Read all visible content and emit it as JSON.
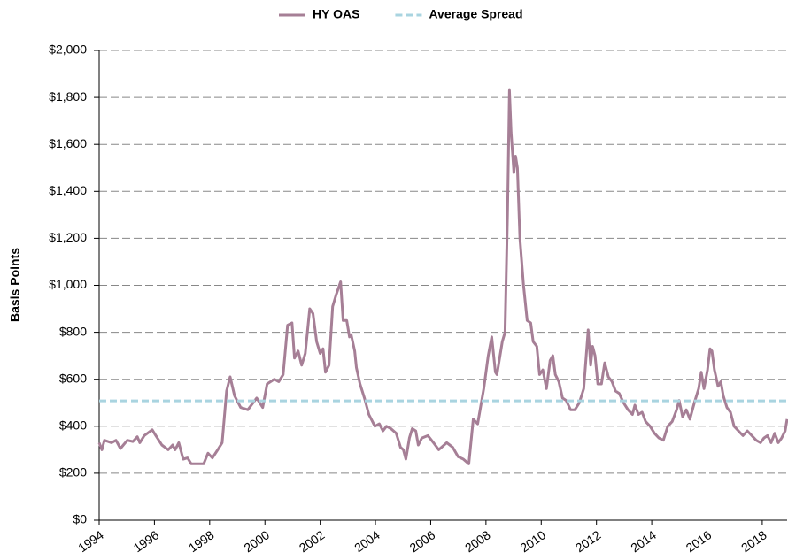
{
  "chart_data": {
    "type": "line",
    "y_label": "Basis Points",
    "x": [
      1994.0,
      1994.1,
      1994.19,
      1994.45,
      1994.61,
      1994.77,
      1995.02,
      1995.22,
      1995.38,
      1995.47,
      1995.63,
      1995.92,
      1996.05,
      1996.27,
      1996.5,
      1996.66,
      1996.75,
      1996.88,
      1997.04,
      1997.2,
      1997.33,
      1997.78,
      1997.94,
      1998.1,
      1998.29,
      1998.45,
      1998.61,
      1998.74,
      1998.9,
      1999.12,
      1999.38,
      1999.7,
      1999.92,
      2000.08,
      2000.34,
      2000.5,
      2000.66,
      2000.82,
      2000.98,
      2001.07,
      2001.2,
      2001.33,
      2001.46,
      2001.62,
      2001.74,
      2001.87,
      2002.0,
      2002.1,
      2002.19,
      2002.32,
      2002.45,
      2002.58,
      2002.74,
      2002.83,
      2002.96,
      2003.06,
      2003.12,
      2003.25,
      2003.31,
      2003.44,
      2003.6,
      2003.76,
      2003.98,
      2004.14,
      2004.27,
      2004.4,
      2004.56,
      2004.75,
      2004.91,
      2005.01,
      2005.1,
      2005.23,
      2005.33,
      2005.46,
      2005.55,
      2005.68,
      2005.9,
      2006.1,
      2006.29,
      2006.58,
      2006.8,
      2006.99,
      2007.18,
      2007.38,
      2007.54,
      2007.7,
      2007.92,
      2008.08,
      2008.21,
      2008.34,
      2008.4,
      2008.59,
      2008.69,
      2008.78,
      2008.85,
      2008.91,
      2009.01,
      2009.07,
      2009.14,
      2009.23,
      2009.36,
      2009.49,
      2009.62,
      2009.71,
      2009.84,
      2009.94,
      2010.06,
      2010.19,
      2010.32,
      2010.42,
      2010.51,
      2010.64,
      2010.77,
      2010.9,
      2011.06,
      2011.22,
      2011.38,
      2011.54,
      2011.7,
      2011.79,
      2011.86,
      2011.95,
      2012.05,
      2012.18,
      2012.3,
      2012.43,
      2012.56,
      2012.69,
      2012.82,
      2012.98,
      2013.14,
      2013.3,
      2013.39,
      2013.52,
      2013.65,
      2013.78,
      2013.94,
      2014.1,
      2014.26,
      2014.42,
      2014.58,
      2014.74,
      2014.9,
      2014.99,
      2015.12,
      2015.25,
      2015.38,
      2015.54,
      2015.7,
      2015.79,
      2015.89,
      2016.02,
      2016.11,
      2016.18,
      2016.27,
      2016.4,
      2016.5,
      2016.59,
      2016.72,
      2016.85,
      2016.98,
      2017.14,
      2017.3,
      2017.46,
      2017.62,
      2017.78,
      2017.94,
      2018.06,
      2018.19,
      2018.32,
      2018.45,
      2018.58,
      2018.7,
      2018.83,
      2018.9
    ],
    "series": [
      {
        "name": "HY OAS",
        "color": "#a67f96",
        "values": [
          330,
          300,
          340,
          330,
          340,
          305,
          340,
          335,
          355,
          330,
          360,
          385,
          360,
          320,
          300,
          320,
          300,
          330,
          260,
          265,
          240,
          240,
          285,
          265,
          300,
          330,
          550,
          610,
          530,
          480,
          470,
          520,
          480,
          580,
          600,
          590,
          620,
          830,
          840,
          690,
          720,
          660,
          710,
          900,
          880,
          760,
          710,
          730,
          630,
          660,
          910,
          960,
          1015,
          850,
          850,
          780,
          790,
          720,
          650,
          580,
          520,
          450,
          400,
          410,
          380,
          400,
          390,
          370,
          310,
          300,
          260,
          350,
          390,
          380,
          320,
          350,
          360,
          330,
          300,
          330,
          310,
          270,
          260,
          240,
          430,
          410,
          560,
          700,
          780,
          630,
          620,
          760,
          800,
          1300,
          1830,
          1650,
          1480,
          1550,
          1500,
          1200,
          1000,
          850,
          840,
          760,
          740,
          620,
          640,
          560,
          680,
          700,
          620,
          590,
          520,
          510,
          470,
          470,
          500,
          560,
          810,
          660,
          740,
          700,
          580,
          580,
          670,
          610,
          590,
          550,
          540,
          500,
          470,
          450,
          490,
          450,
          460,
          420,
          400,
          370,
          350,
          340,
          400,
          420,
          470,
          510,
          440,
          470,
          430,
          500,
          560,
          630,
          560,
          640,
          730,
          720,
          640,
          570,
          590,
          530,
          480,
          460,
          400,
          380,
          360,
          380,
          360,
          340,
          330,
          350,
          360,
          330,
          370,
          330,
          350,
          380,
          430
        ]
      },
      {
        "name": "Average Spread",
        "color": "#a9d4e0",
        "value": 508,
        "dashed": true
      }
    ],
    "xlim": [
      1994,
      2018.9
    ],
    "xticks": [
      1994,
      1996,
      1998,
      2000,
      2002,
      2004,
      2006,
      2008,
      2010,
      2012,
      2014,
      2016,
      2018
    ],
    "ylim": [
      0,
      2000
    ],
    "yticks": [
      {
        "value": 0,
        "label": "$0"
      },
      {
        "value": 200,
        "label": "$200"
      },
      {
        "value": 400,
        "label": "$400"
      },
      {
        "value": 600,
        "label": "$600"
      },
      {
        "value": 800,
        "label": "$800"
      },
      {
        "value": 1000,
        "label": "$1,000"
      },
      {
        "value": 1200,
        "label": "$1,200"
      },
      {
        "value": 1400,
        "label": "$1,400"
      },
      {
        "value": 1600,
        "label": "$1,600"
      },
      {
        "value": 1800,
        "label": "$1,800"
      },
      {
        "value": 2000,
        "label": "$2,000"
      }
    ],
    "grid": true,
    "legend": "top"
  }
}
